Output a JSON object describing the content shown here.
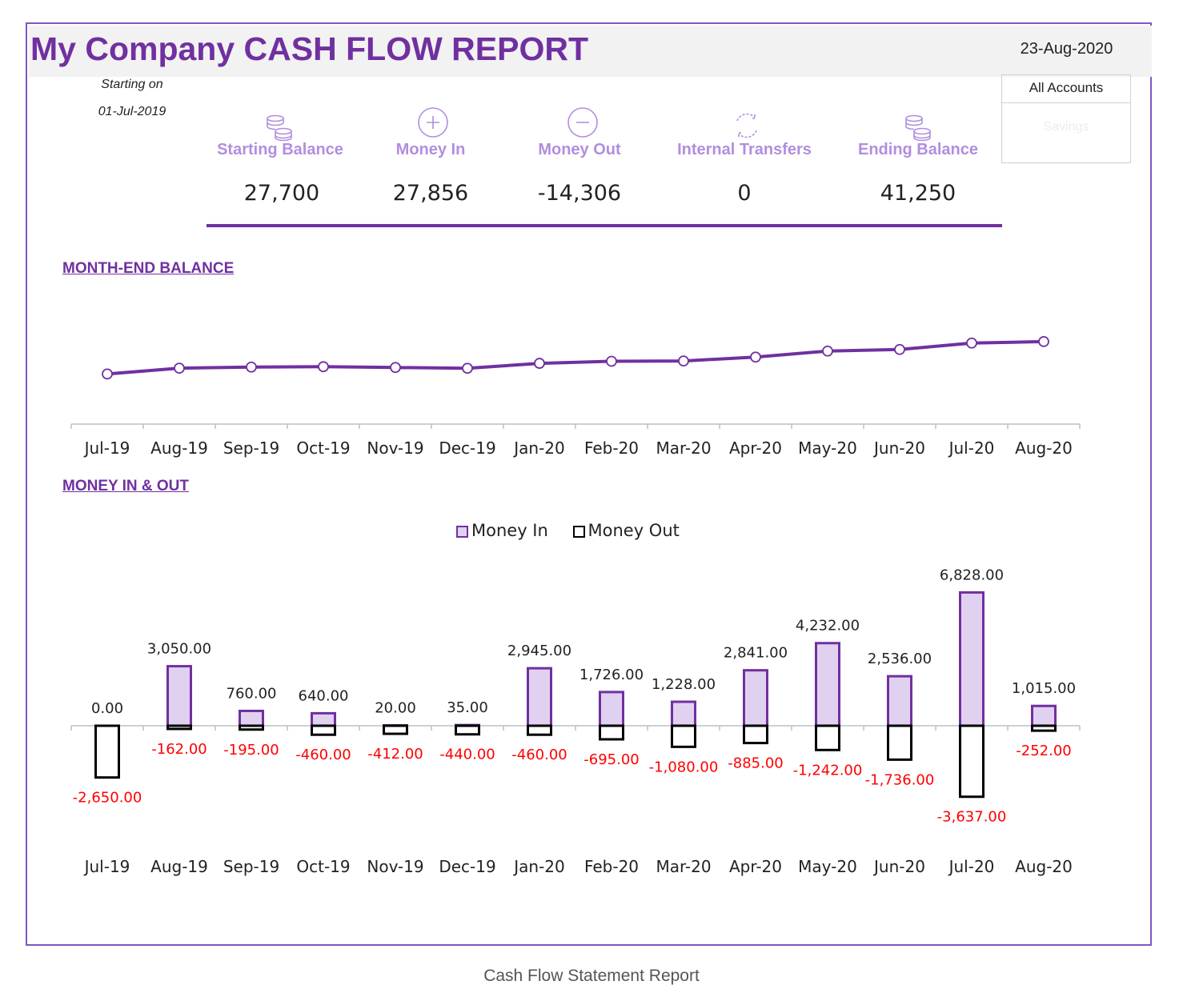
{
  "report": {
    "title": "My Company CASH FLOW REPORT",
    "date": "23-Aug-2020",
    "starting_label": "Starting on",
    "starting_date": "01-Jul-2019",
    "accounts": {
      "selected": "All Accounts",
      "other": "Savings"
    },
    "caption": "Cash Flow Statement Report"
  },
  "summary": [
    {
      "label": "Starting Balance",
      "value": "27,700",
      "icon": "coins-icon"
    },
    {
      "label": "Money In",
      "value": "27,856",
      "icon": "plus-circle-icon"
    },
    {
      "label": "Money Out",
      "value": "-14,306",
      "icon": "minus-circle-icon"
    },
    {
      "label": "Internal Transfers",
      "value": "0",
      "icon": "transfer-cycle-icon"
    },
    {
      "label": "Ending Balance",
      "value": "41,250",
      "icon": "coins-icon"
    }
  ],
  "colors": {
    "accent": "#7030a0",
    "light_accent": "#b18ee0",
    "bar_fill": "#e1d1f0",
    "negative": "#ff0000"
  },
  "chart_data": [
    {
      "type": "line",
      "title": "MONTH-END BALANCE",
      "categories": [
        "Jul-19",
        "Aug-19",
        "Sep-19",
        "Oct-19",
        "Nov-19",
        "Dec-19",
        "Jan-20",
        "Feb-20",
        "Mar-20",
        "Apr-20",
        "May-20",
        "Jun-20",
        "Jul-20",
        "Aug-20"
      ],
      "values": [
        25050,
        27938,
        28503,
        28683,
        28291,
        27886,
        30371,
        31402,
        31550,
        33506,
        36496,
        37296,
        40487,
        41250
      ],
      "ylim": [
        0,
        60000
      ],
      "grid": false,
      "markers": true
    },
    {
      "type": "bar",
      "title": "MONEY IN & OUT",
      "categories": [
        "Jul-19",
        "Aug-19",
        "Sep-19",
        "Oct-19",
        "Nov-19",
        "Dec-19",
        "Jan-20",
        "Feb-20",
        "Mar-20",
        "Apr-20",
        "May-20",
        "Jun-20",
        "Jul-20",
        "Aug-20"
      ],
      "series": [
        {
          "name": "Money In",
          "values": [
            0,
            3050,
            760,
            640,
            20,
            35,
            2945,
            1726,
            1228,
            2841,
            4232,
            2536,
            6828,
            1015
          ],
          "labels": [
            "0.00",
            "3,050.00",
            "760.00",
            "640.00",
            "20.00",
            "35.00",
            "2,945.00",
            "1,726.00",
            "1,228.00",
            "2,841.00",
            "4,232.00",
            "2,536.00",
            "6,828.00",
            "1,015.00"
          ]
        },
        {
          "name": "Money Out",
          "values": [
            -2650,
            -162,
            -195,
            -460,
            -412,
            -440,
            -460,
            -695,
            -1080,
            -885,
            -1242,
            -1736,
            -3637,
            -252
          ],
          "labels": [
            "-2,650.00",
            "-162.00",
            "-195.00",
            "-460.00",
            "-412.00",
            "-440.00",
            "-460.00",
            "-695.00",
            "-1,080.00",
            "-885.00",
            "-1,242.00",
            "-1,736.00",
            "-3,637.00",
            "-252.00"
          ]
        }
      ],
      "legend": "top-center",
      "grid": false
    }
  ]
}
